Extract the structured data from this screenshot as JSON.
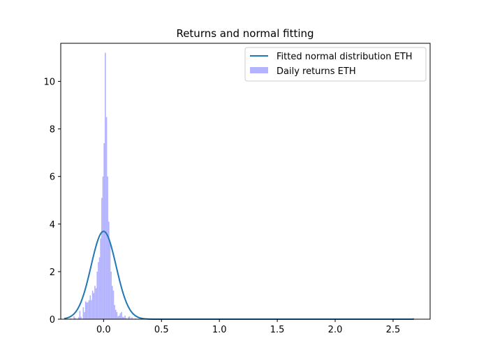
{
  "chart_data": {
    "type": "bar",
    "title": "Returns and normal fitting",
    "xlabel": "",
    "ylabel": "",
    "xlim": [
      -0.37,
      2.82
    ],
    "ylim": [
      0,
      11.6
    ],
    "xticks": [
      0.0,
      0.5,
      1.0,
      1.5,
      2.0,
      2.5
    ],
    "xtick_labels": [
      "0.0",
      "0.5",
      "1.0",
      "1.5",
      "2.0",
      "2.5"
    ],
    "yticks": [
      0,
      2,
      4,
      6,
      8,
      10
    ],
    "ytick_labels": [
      "0",
      "2",
      "4",
      "6",
      "8",
      "10"
    ],
    "legend_position": "top-right",
    "grid": false,
    "series": [
      {
        "name": "Fitted normal distribution ETH",
        "kind": "line",
        "color": "#1f77b4",
        "mean": 0.0,
        "std": 0.108,
        "x_range": [
          -0.34,
          2.68
        ]
      },
      {
        "name": "Daily returns ETH",
        "kind": "histogram",
        "color": "#b3b3ff",
        "bin_width": 0.01,
        "bins": [
          {
            "x": -0.34,
            "y": 0.02
          },
          {
            "x": -0.29,
            "y": 0.04
          },
          {
            "x": -0.26,
            "y": 0.12
          },
          {
            "x": -0.25,
            "y": 0.05
          },
          {
            "x": -0.22,
            "y": 0.08
          },
          {
            "x": -0.21,
            "y": 0.35
          },
          {
            "x": -0.2,
            "y": 0.1
          },
          {
            "x": -0.18,
            "y": 0.5
          },
          {
            "x": -0.17,
            "y": 0.3
          },
          {
            "x": -0.16,
            "y": 0.75
          },
          {
            "x": -0.15,
            "y": 0.7
          },
          {
            "x": -0.14,
            "y": 0.72
          },
          {
            "x": -0.13,
            "y": 0.8
          },
          {
            "x": -0.12,
            "y": 1.0
          },
          {
            "x": -0.11,
            "y": 0.8
          },
          {
            "x": -0.1,
            "y": 1.2
          },
          {
            "x": -0.09,
            "y": 1.1
          },
          {
            "x": -0.08,
            "y": 1.4
          },
          {
            "x": -0.07,
            "y": 1.3
          },
          {
            "x": -0.06,
            "y": 2.0
          },
          {
            "x": -0.05,
            "y": 2.4
          },
          {
            "x": -0.04,
            "y": 2.6
          },
          {
            "x": -0.03,
            "y": 3.4
          },
          {
            "x": -0.02,
            "y": 5.1
          },
          {
            "x": -0.01,
            "y": 6.0
          },
          {
            "x": 0.0,
            "y": 7.4
          },
          {
            "x": 0.01,
            "y": 11.2
          },
          {
            "x": 0.02,
            "y": 8.5
          },
          {
            "x": 0.03,
            "y": 6.0
          },
          {
            "x": 0.04,
            "y": 4.1
          },
          {
            "x": 0.05,
            "y": 3.2
          },
          {
            "x": 0.06,
            "y": 2.0
          },
          {
            "x": 0.07,
            "y": 1.4
          },
          {
            "x": 0.08,
            "y": 1.2
          },
          {
            "x": 0.09,
            "y": 0.6
          },
          {
            "x": 0.1,
            "y": 0.4
          },
          {
            "x": 0.11,
            "y": 0.3
          },
          {
            "x": 0.12,
            "y": 0.12
          },
          {
            "x": 0.13,
            "y": 0.15
          },
          {
            "x": 0.14,
            "y": 0.25
          },
          {
            "x": 0.15,
            "y": 0.3
          },
          {
            "x": 0.16,
            "y": 0.1
          },
          {
            "x": 0.17,
            "y": 0.08
          },
          {
            "x": 0.18,
            "y": 0.15
          },
          {
            "x": 0.19,
            "y": 0.05
          },
          {
            "x": 0.21,
            "y": 0.1
          },
          {
            "x": 0.22,
            "y": 0.12
          },
          {
            "x": 0.24,
            "y": 0.08
          },
          {
            "x": 0.27,
            "y": 0.03
          },
          {
            "x": 0.3,
            "y": 0.02
          },
          {
            "x": 0.36,
            "y": 0.02
          },
          {
            "x": 2.67,
            "y": 0.05
          }
        ]
      }
    ]
  }
}
